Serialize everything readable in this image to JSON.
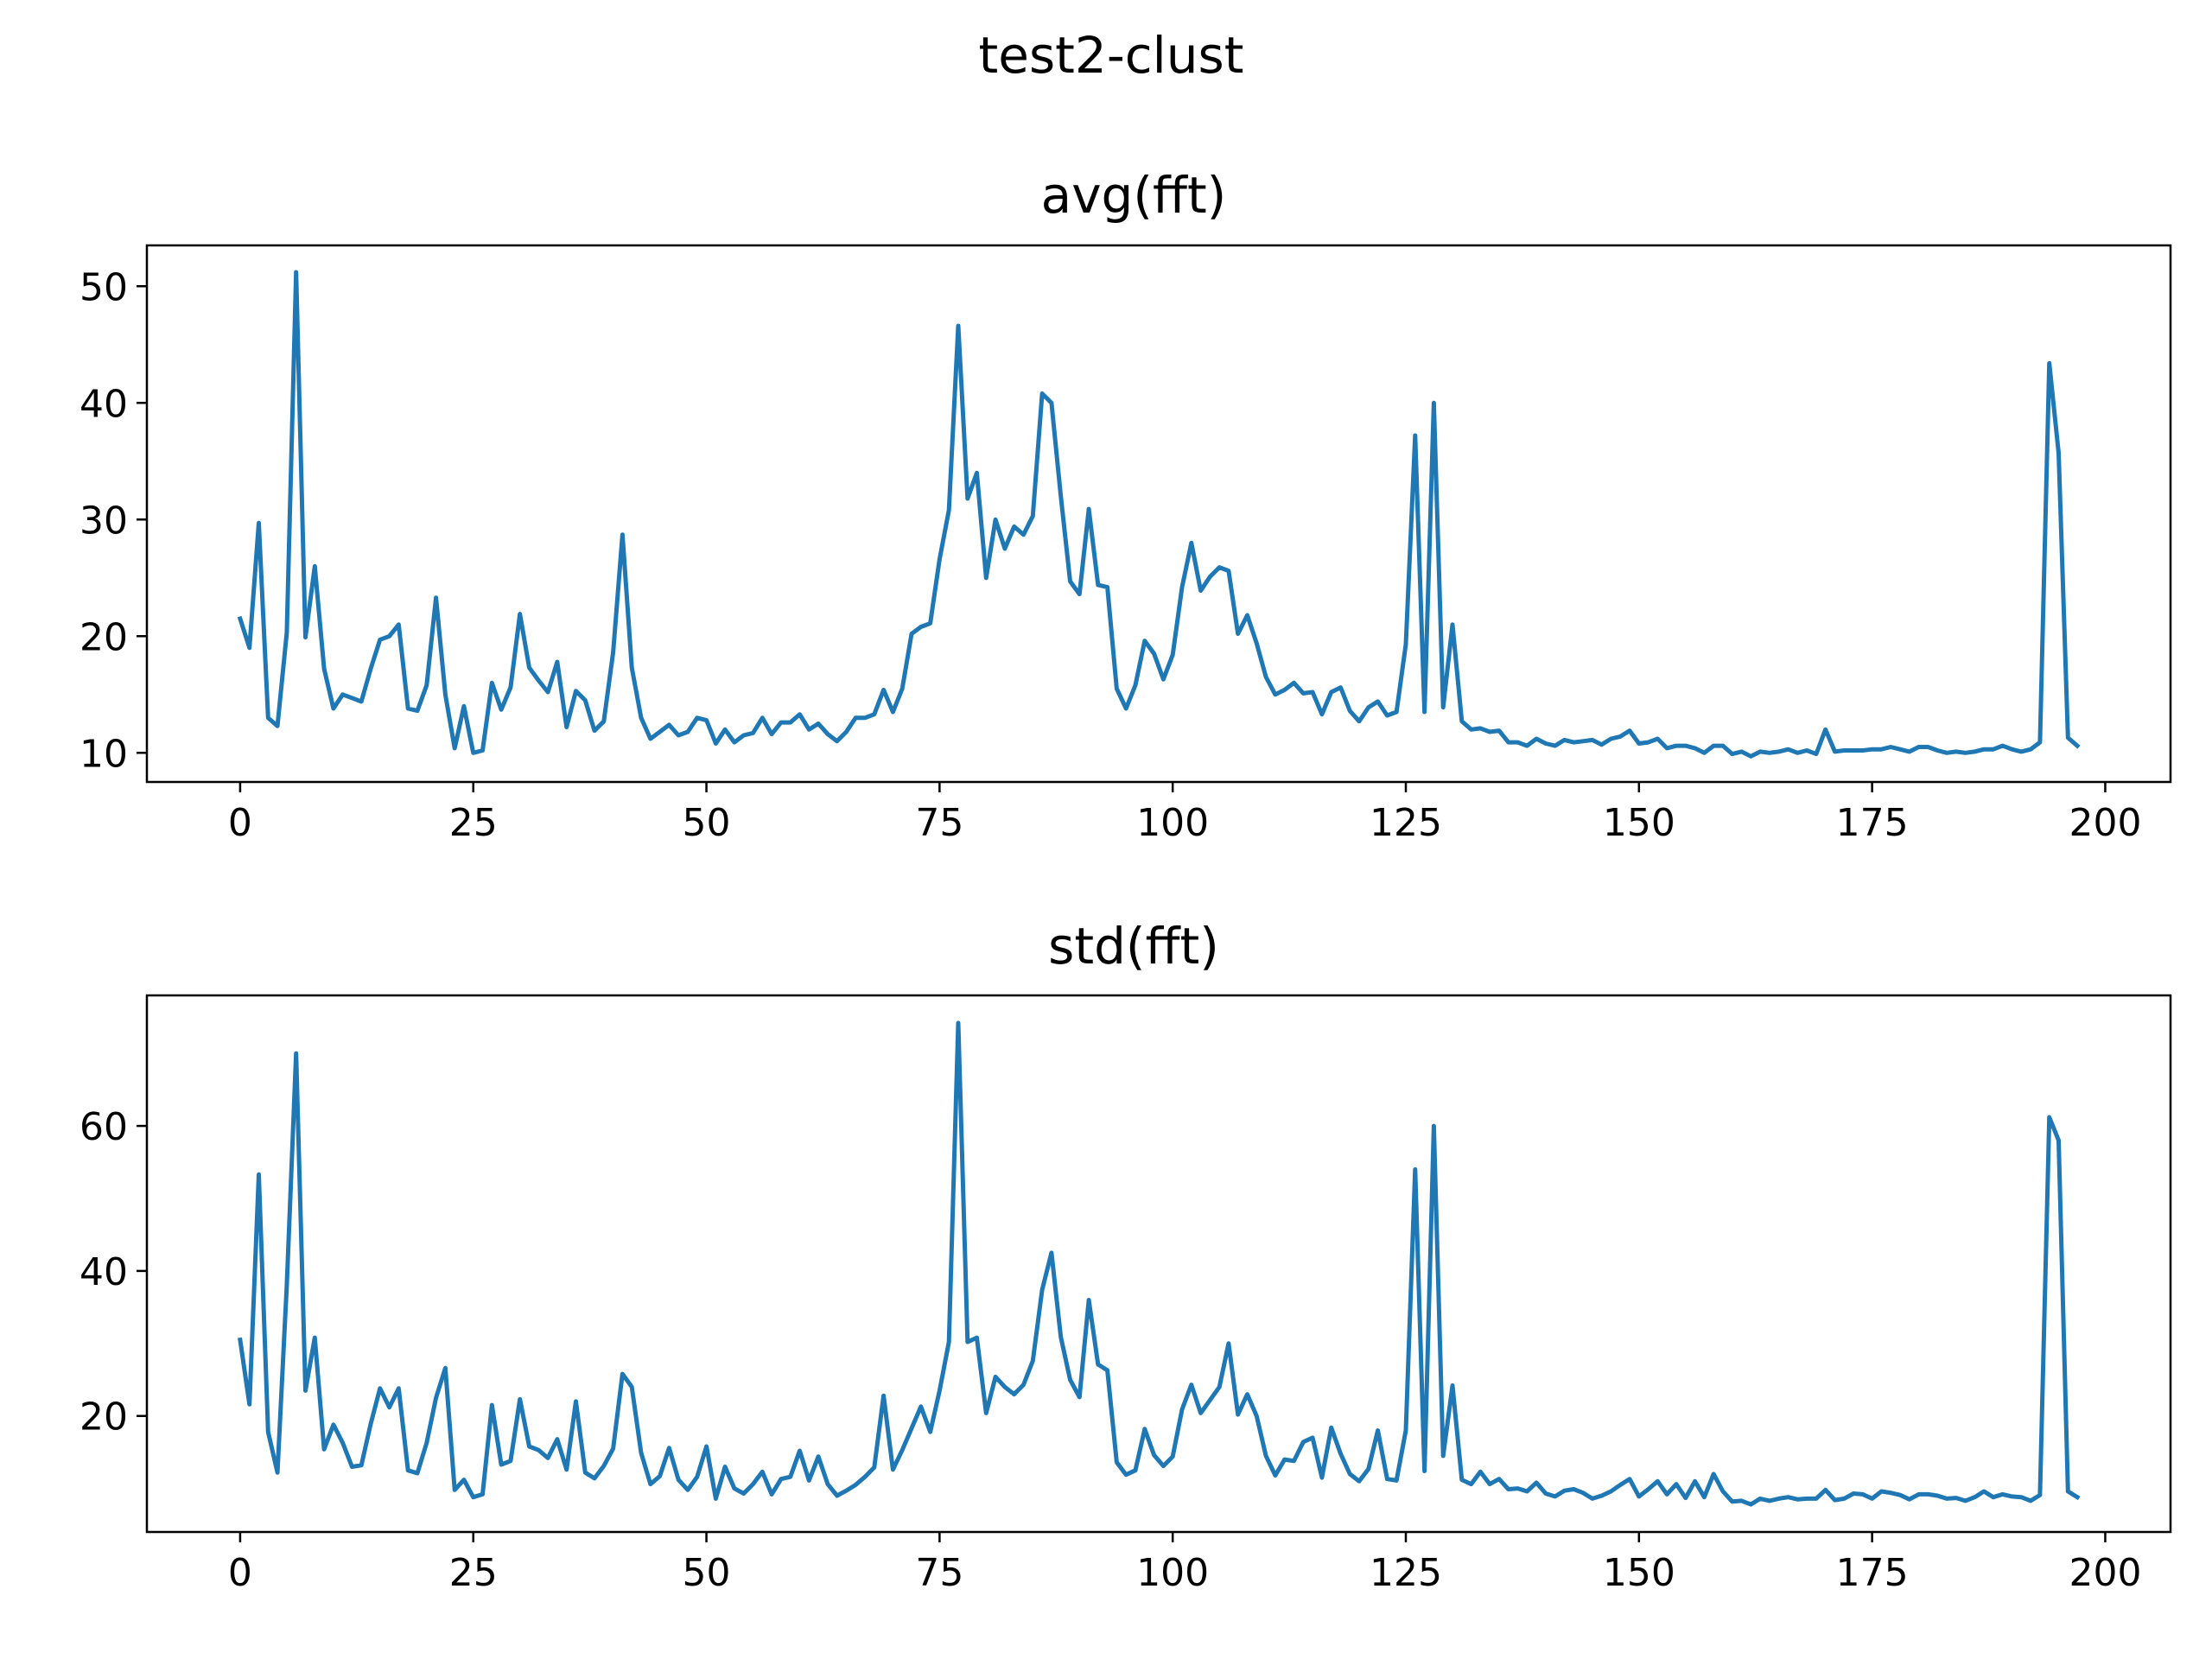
{
  "suptitle": "test2-clust",
  "chart_data": [
    {
      "type": "line",
      "title": "avg(fft)",
      "xlabel": "",
      "ylabel": "",
      "xlim": [
        -10,
        207
      ],
      "ylim": [
        7.5,
        53.5
      ],
      "xticks": [
        0,
        25,
        50,
        75,
        100,
        125,
        150,
        175,
        200
      ],
      "xtick_labels": [
        "0",
        "25",
        "50",
        "75",
        "100",
        "125",
        "150",
        "175",
        "200"
      ],
      "yticks": [
        10,
        20,
        30,
        40,
        50
      ],
      "ytick_labels": [
        "10",
        "20",
        "30",
        "40",
        "50"
      ],
      "grid": false,
      "line_color": "#1f77b4",
      "x_start": 0,
      "y": [
        21.5,
        19.0,
        29.7,
        13.0,
        12.3,
        20.3,
        51.2,
        19.9,
        26.0,
        17.2,
        13.8,
        15.0,
        14.7,
        14.4,
        17.2,
        19.7,
        20.0,
        21.0,
        13.8,
        13.6,
        15.8,
        23.3,
        15.0,
        10.4,
        14.0,
        10.0,
        10.2,
        16.0,
        13.7,
        15.6,
        21.9,
        17.3,
        16.2,
        15.2,
        17.8,
        12.2,
        15.3,
        14.5,
        11.9,
        12.7,
        18.6,
        28.7,
        17.3,
        13.0,
        11.2,
        11.8,
        12.4,
        11.5,
        11.8,
        13.0,
        12.8,
        10.8,
        12.0,
        10.9,
        11.5,
        11.7,
        13.0,
        11.6,
        12.6,
        12.6,
        13.3,
        12.0,
        12.5,
        11.6,
        11.0,
        11.8,
        13.0,
        13.0,
        13.3,
        15.4,
        13.5,
        15.5,
        20.2,
        20.8,
        21.1,
        26.6,
        30.8,
        46.6,
        31.8,
        34.0,
        25.0,
        30.0,
        27.5,
        29.4,
        28.7,
        30.3,
        40.8,
        40.0,
        32.0,
        24.7,
        23.6,
        30.9,
        24.4,
        24.2,
        15.5,
        13.8,
        15.8,
        19.6,
        18.5,
        16.3,
        18.4,
        24.2,
        28.0,
        23.9,
        25.1,
        25.9,
        25.6,
        20.2,
        21.8,
        19.4,
        16.5,
        15.0,
        15.4,
        16.0,
        15.1,
        15.2,
        13.3,
        15.2,
        15.6,
        13.6,
        12.7,
        13.9,
        14.4,
        13.2,
        13.5,
        19.3,
        37.2,
        13.5,
        40.0,
        13.9,
        21.0,
        12.7,
        12.0,
        12.1,
        11.8,
        11.9,
        10.9,
        10.9,
        10.6,
        11.2,
        10.8,
        10.6,
        11.1,
        10.9,
        11.0,
        11.1,
        10.7,
        11.2,
        11.4,
        11.9,
        10.8,
        10.9,
        11.2,
        10.4,
        10.6,
        10.6,
        10.4,
        10.0,
        10.6,
        10.6,
        9.9,
        10.1,
        9.7,
        10.1,
        10.0,
        10.1,
        10.3,
        10.0,
        10.2,
        9.9,
        12.0,
        10.1,
        10.2,
        10.2,
        10.2,
        10.3,
        10.3,
        10.5,
        10.3,
        10.1,
        10.5,
        10.5,
        10.2,
        10.0,
        10.1,
        10.0,
        10.1,
        10.3,
        10.3,
        10.6,
        10.3,
        10.1,
        10.3,
        10.9,
        43.4,
        35.7,
        11.3,
        10.6
      ]
    },
    {
      "type": "line",
      "title": "std(fft)",
      "xlabel": "",
      "ylabel": "",
      "xlim": [
        -10,
        207
      ],
      "ylim": [
        4.0,
        78.0
      ],
      "xticks": [
        0,
        25,
        50,
        75,
        100,
        125,
        150,
        175,
        200
      ],
      "xtick_labels": [
        "0",
        "25",
        "50",
        "75",
        "100",
        "125",
        "150",
        "175",
        "200"
      ],
      "yticks": [
        20,
        40,
        60
      ],
      "ytick_labels": [
        "20",
        "40",
        "60"
      ],
      "grid": false,
      "line_color": "#1f77b4",
      "x_start": 0,
      "y": [
        30.5,
        21.6,
        53.3,
        17.8,
        12.2,
        38.0,
        70.0,
        23.5,
        30.8,
        15.4,
        18.8,
        16.3,
        13.0,
        13.2,
        18.9,
        23.8,
        21.2,
        23.8,
        12.5,
        12.1,
        16.3,
        22.5,
        26.6,
        9.8,
        11.2,
        8.8,
        9.2,
        21.5,
        13.3,
        13.8,
        22.3,
        15.8,
        15.3,
        14.2,
        16.8,
        12.6,
        22.0,
        12.2,
        11.4,
        13.1,
        15.5,
        25.8,
        24.0,
        14.9,
        10.6,
        11.7,
        15.6,
        11.2,
        9.8,
        11.6,
        15.8,
        8.6,
        13.0,
        10.0,
        9.3,
        10.6,
        12.3,
        9.2,
        11.3,
        11.6,
        15.2,
        11.1,
        14.4,
        10.6,
        9.0,
        9.7,
        10.5,
        11.6,
        12.9,
        22.8,
        12.6,
        15.3,
        18.3,
        21.3,
        17.8,
        23.5,
        30.2,
        74.2,
        30.2,
        30.8,
        20.4,
        25.4,
        24.0,
        23.0,
        24.3,
        27.6,
        37.4,
        42.5,
        30.9,
        25.0,
        22.6,
        36.0,
        27.1,
        26.3,
        13.6,
        11.9,
        12.5,
        18.2,
        14.6,
        13.1,
        14.4,
        20.9,
        24.3,
        20.4,
        22.2,
        24.0,
        30.0,
        20.2,
        23.0,
        20.0,
        14.5,
        11.8,
        14.0,
        13.8,
        16.4,
        17.0,
        11.5,
        18.4,
        14.8,
        12.0,
        11.0,
        12.7,
        18.0,
        11.3,
        11.1,
        18.0,
        54.0,
        12.4,
        60.0,
        14.5,
        24.2,
        11.2,
        10.6,
        12.3,
        10.6,
        11.3,
        9.9,
        10.0,
        9.6,
        10.8,
        9.3,
        8.9,
        9.7,
        9.9,
        9.4,
        8.6,
        9.0,
        9.6,
        10.5,
        11.3,
        8.9,
        9.9,
        11.0,
        9.2,
        10.6,
        8.7,
        11.0,
        8.8,
        12.0,
        9.6,
        8.2,
        8.3,
        7.8,
        8.6,
        8.3,
        8.6,
        8.8,
        8.5,
        8.6,
        8.6,
        9.8,
        8.4,
        8.6,
        9.3,
        9.2,
        8.6,
        9.6,
        9.4,
        9.1,
        8.5,
        9.2,
        9.2,
        9.0,
        8.6,
        8.7,
        8.3,
        8.8,
        9.6,
        8.8,
        9.2,
        8.9,
        8.8,
        8.3,
        9.1,
        61.2,
        58.0,
        9.6,
        8.8
      ]
    }
  ]
}
